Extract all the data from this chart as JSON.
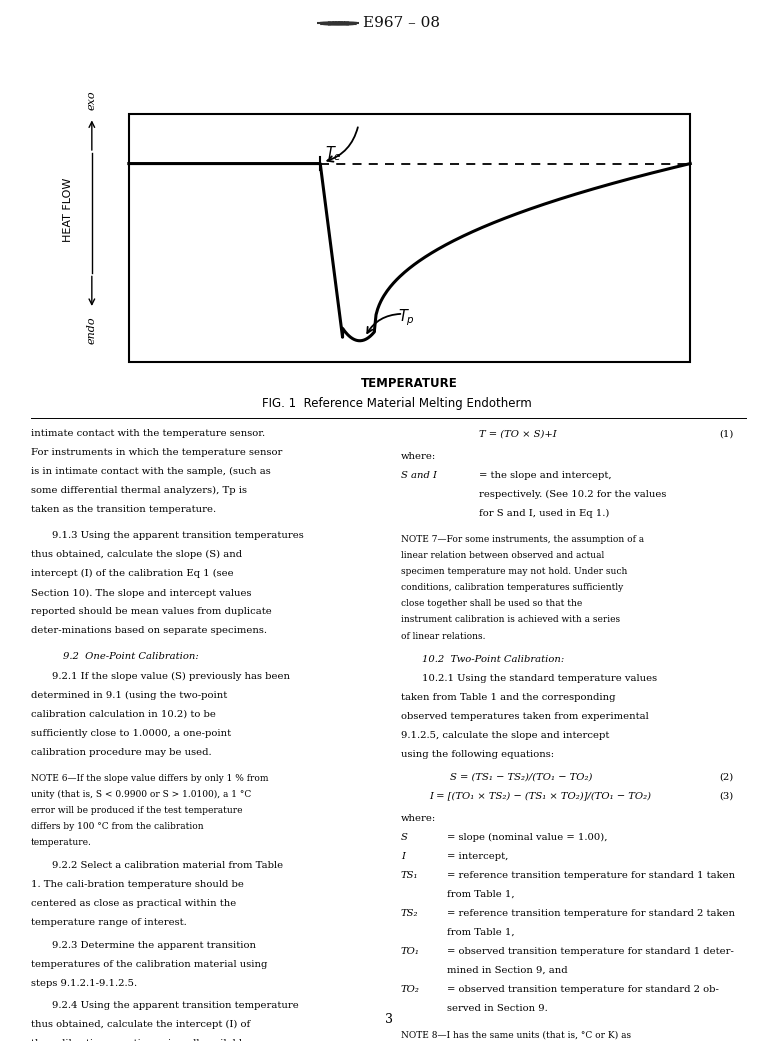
{
  "header_text": "E967 – 08",
  "chart_title": "TEMPERATURE",
  "chart_subtitle": "FIG. 1  Reference Material Melting Endotherm",
  "page_number": "3",
  "background_color": "#ffffff",
  "text_color": "#000000",
  "red_color": "#cc0000"
}
